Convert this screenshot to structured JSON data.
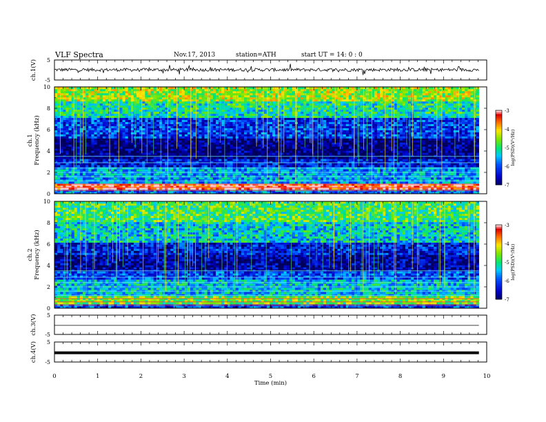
{
  "header": {
    "title": "VLF  Spectra",
    "date": "Nov.17, 2013",
    "station": "station=ATH",
    "start": "start  UT  =    14: 0  : 0"
  },
  "chart_data": [
    {
      "type": "line",
      "ylabel": "ch.1(V)",
      "ylim": [
        -5,
        5
      ],
      "yticks": [
        "5",
        "-5"
      ],
      "xlim": [
        0,
        10
      ],
      "x_extent_min": [
        0,
        9.82
      ],
      "description_level": 0.1,
      "series": [
        {
          "values": [
            0.1,
            0.1
          ]
        }
      ]
    },
    {
      "type": "heatmap",
      "ylabel": "ch.1\nFrequency  (kHz)",
      "ylabel_lines": [
        "ch.1",
        "Frequency  (kHz)"
      ],
      "ylim": [
        0,
        10
      ],
      "yticks": [
        "0",
        "2",
        "4",
        "6",
        "8",
        "10"
      ],
      "xlim": [
        0,
        10
      ],
      "colorbar": {
        "label": "log(PSD)(V²/Hz)",
        "ticks": [
          "-3",
          "-4",
          "-5",
          "-6",
          "-7"
        ],
        "range": [
          -7,
          -3
        ]
      },
      "bands": [
        {
          "from": 0,
          "to": 0.4,
          "value": -5.8
        },
        {
          "from": 0.4,
          "to": 1.0,
          "value": -3.2
        },
        {
          "from": 1.0,
          "to": 2.5,
          "value": -5.6
        },
        {
          "from": 2.5,
          "to": 3.2,
          "value": -6.3
        },
        {
          "from": 3.2,
          "to": 5.2,
          "value": -6.9
        },
        {
          "from": 5.2,
          "to": 7.2,
          "value": -6.1
        },
        {
          "from": 7.2,
          "to": 8.6,
          "value": -5.1
        },
        {
          "from": 8.6,
          "to": 10,
          "value": -4.4
        }
      ]
    },
    {
      "type": "heatmap",
      "ylabel": "ch.2\nFrequency  (kHz)",
      "ylabel_lines": [
        "ch.2",
        "Frequency  (kHz)"
      ],
      "ylim": [
        0,
        10
      ],
      "yticks": [
        "0",
        "2",
        "4",
        "6",
        "8",
        "10"
      ],
      "xlim": [
        0,
        10
      ],
      "colorbar": {
        "label": "log(PSD)(V²/Hz)",
        "ticks": [
          "-3",
          "-4",
          "-5",
          "-6",
          "-7"
        ],
        "range": [
          -7,
          -3
        ]
      },
      "bands": [
        {
          "from": 0,
          "to": 0.4,
          "value": -6.0
        },
        {
          "from": 0.4,
          "to": 1.2,
          "value": -4.6
        },
        {
          "from": 1.2,
          "to": 2.6,
          "value": -5.4
        },
        {
          "from": 2.6,
          "to": 3.4,
          "value": -6.0
        },
        {
          "from": 3.4,
          "to": 5.0,
          "value": -6.7
        },
        {
          "from": 5.0,
          "to": 6.2,
          "value": -6.3
        },
        {
          "from": 6.2,
          "to": 8.0,
          "value": -5.3
        },
        {
          "from": 8.0,
          "to": 10,
          "value": -4.8
        }
      ]
    },
    {
      "type": "line",
      "ylabel": "ch.3(V)",
      "ylim": [
        -5,
        5
      ],
      "yticks": [
        "5",
        "-5"
      ],
      "xlim": [
        0,
        10
      ],
      "series": [
        {
          "values": [
            -0.3,
            -0.3
          ]
        }
      ]
    },
    {
      "type": "line",
      "ylabel": "ch.4(V)",
      "ylim": [
        -5,
        5
      ],
      "yticks": [
        "5",
        "-5"
      ],
      "xlim": [
        0,
        10
      ],
      "xlabel": "Time  (min)",
      "xticks": [
        "0",
        "1",
        "2",
        "3",
        "4",
        "5",
        "6",
        "7",
        "8",
        "9",
        "10"
      ],
      "series": [
        {
          "values": [
            -0.4,
            -0.4
          ]
        }
      ]
    }
  ],
  "colors": {
    "axis": "#000000",
    "trace": "#000000",
    "background": "#ffffff"
  }
}
